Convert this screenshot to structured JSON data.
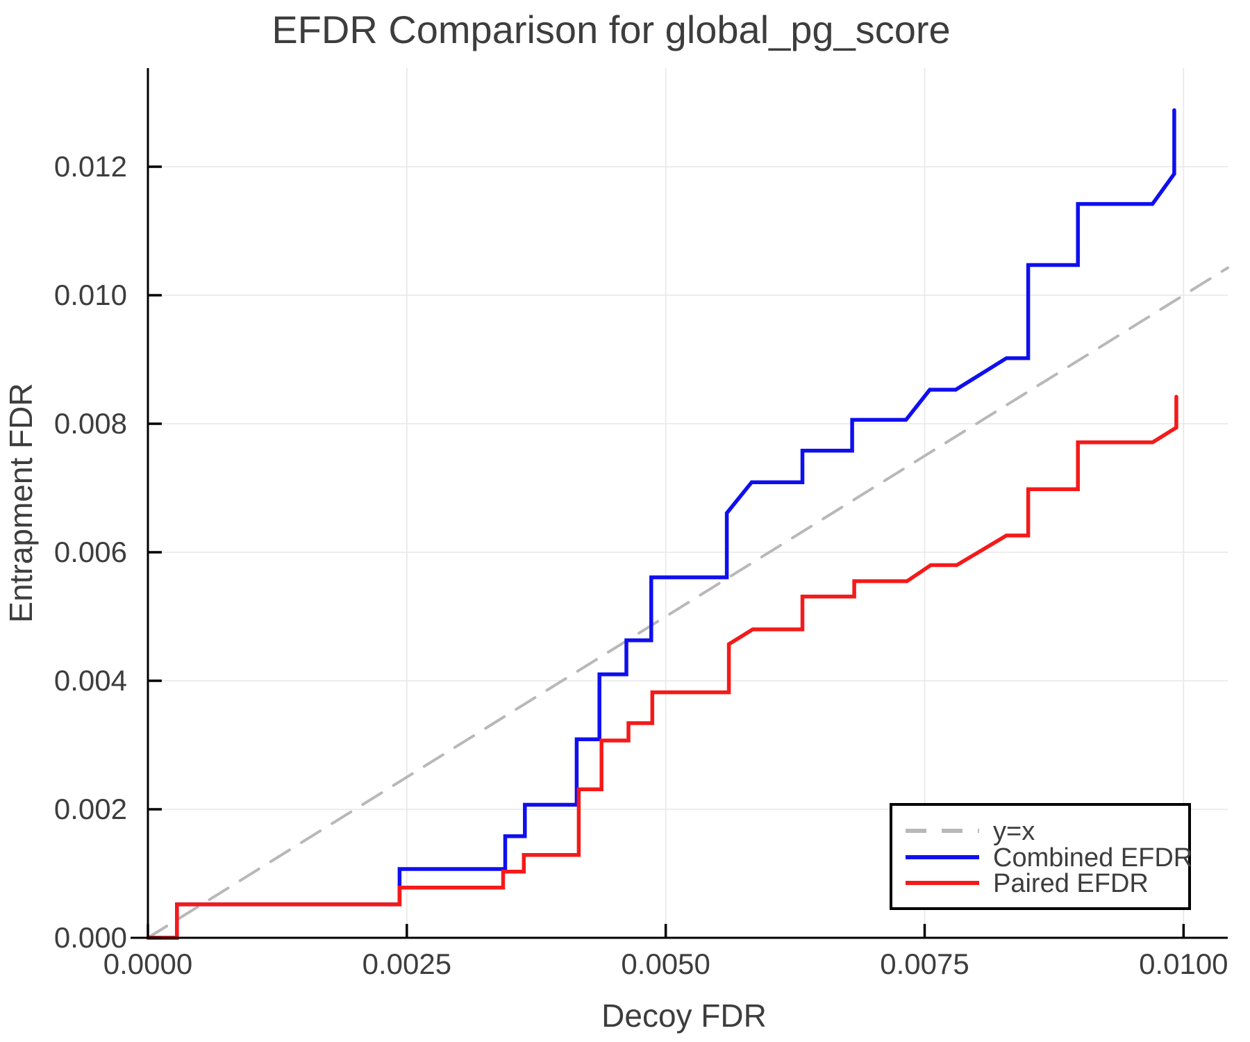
{
  "page": {
    "title": "EFDR Comparison for global_pg_score"
  },
  "chart_data": {
    "type": "line",
    "subtype": "step-curves",
    "title": "EFDR Comparison for global_pg_score",
    "xlabel": "Decoy FDR",
    "ylabel": "Entrapment FDR",
    "xlim": [
      0,
      0.010427
    ],
    "ylim": [
      0,
      0.013535
    ],
    "grid": true,
    "legend_position": "bottom-right",
    "x_ticks": [
      {
        "v": 0.0,
        "label": "0.0000"
      },
      {
        "v": 0.0025,
        "label": "0.0025"
      },
      {
        "v": 0.005,
        "label": "0.0050"
      },
      {
        "v": 0.0075,
        "label": "0.0075"
      },
      {
        "v": 0.01,
        "label": "0.0100"
      }
    ],
    "y_ticks": [
      {
        "v": 0.0,
        "label": "0.000"
      },
      {
        "v": 0.002,
        "label": "0.002"
      },
      {
        "v": 0.004,
        "label": "0.004"
      },
      {
        "v": 0.006,
        "label": "0.006"
      },
      {
        "v": 0.008,
        "label": "0.008"
      },
      {
        "v": 0.01,
        "label": "0.010"
      },
      {
        "v": 0.012,
        "label": "0.012"
      }
    ],
    "series": [
      {
        "name": "y=x",
        "color": "#b8b8b8",
        "style": "dashed",
        "width": 4,
        "points": [
          [
            0,
            0
          ],
          [
            0.010427,
            0.010427
          ]
        ]
      },
      {
        "name": "Combined EFDR",
        "color": "#0f0fef",
        "style": "solid",
        "width": 5.5,
        "points": [
          [
            0,
            0
          ],
          [
            0.00028,
            0
          ],
          [
            0.00028,
            0.00052
          ],
          [
            0.00243,
            0.00052
          ],
          [
            0.00243,
            0.00107
          ],
          [
            0.00345,
            0.00107
          ],
          [
            0.00345,
            0.00158
          ],
          [
            0.00364,
            0.00158
          ],
          [
            0.00364,
            0.00207
          ],
          [
            0.00414,
            0.00207
          ],
          [
            0.00414,
            0.00309
          ],
          [
            0.00436,
            0.00309
          ],
          [
            0.00436,
            0.0041
          ],
          [
            0.00462,
            0.0041
          ],
          [
            0.00462,
            0.00463
          ],
          [
            0.00486,
            0.00463
          ],
          [
            0.00486,
            0.00561
          ],
          [
            0.00559,
            0.00561
          ],
          [
            0.00559,
            0.00661
          ],
          [
            0.00583,
            0.00709
          ],
          [
            0.00632,
            0.00709
          ],
          [
            0.00632,
            0.00758
          ],
          [
            0.0068,
            0.00758
          ],
          [
            0.0068,
            0.00806
          ],
          [
            0.00732,
            0.00806
          ],
          [
            0.00755,
            0.00853
          ],
          [
            0.0078,
            0.00853
          ],
          [
            0.00829,
            0.00902
          ],
          [
            0.0085,
            0.00902
          ],
          [
            0.0085,
            0.01047
          ],
          [
            0.00898,
            0.01047
          ],
          [
            0.00898,
            0.01142
          ],
          [
            0.0097,
            0.01142
          ],
          [
            0.00991,
            0.01189
          ],
          [
            0.00991,
            0.01288
          ]
        ]
      },
      {
        "name": "Paired EFDR",
        "color": "#f41a1a",
        "style": "solid",
        "width": 5.5,
        "points": [
          [
            0,
            0
          ],
          [
            0.00028,
            0
          ],
          [
            0.00028,
            0.00052
          ],
          [
            0.00243,
            0.00052
          ],
          [
            0.00243,
            0.00078
          ],
          [
            0.00343,
            0.00078
          ],
          [
            0.00343,
            0.00103
          ],
          [
            0.00363,
            0.00103
          ],
          [
            0.00363,
            0.00129
          ],
          [
            0.00416,
            0.00129
          ],
          [
            0.00416,
            0.00231
          ],
          [
            0.00438,
            0.00231
          ],
          [
            0.00438,
            0.00307
          ],
          [
            0.00464,
            0.00307
          ],
          [
            0.00464,
            0.00334
          ],
          [
            0.00487,
            0.00334
          ],
          [
            0.00487,
            0.00382
          ],
          [
            0.00561,
            0.00382
          ],
          [
            0.00561,
            0.00457
          ],
          [
            0.00584,
            0.0048
          ],
          [
            0.00632,
            0.0048
          ],
          [
            0.00632,
            0.00531
          ],
          [
            0.00682,
            0.00531
          ],
          [
            0.00682,
            0.00555
          ],
          [
            0.00733,
            0.00555
          ],
          [
            0.00756,
            0.0058
          ],
          [
            0.00781,
            0.0058
          ],
          [
            0.00829,
            0.00626
          ],
          [
            0.0085,
            0.00626
          ],
          [
            0.0085,
            0.00698
          ],
          [
            0.00898,
            0.00698
          ],
          [
            0.00898,
            0.00771
          ],
          [
            0.0097,
            0.00771
          ],
          [
            0.00993,
            0.00794
          ],
          [
            0.00993,
            0.00842
          ]
        ]
      }
    ]
  }
}
